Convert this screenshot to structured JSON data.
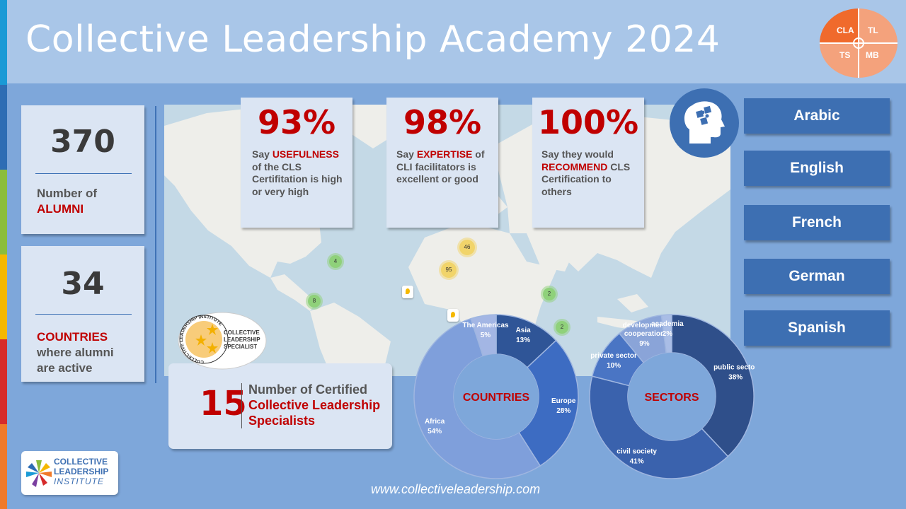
{
  "title": "Collective Leadership Academy 2024",
  "logo_quadrants": {
    "tl": "CLA",
    "tr": "TL",
    "bl": "TS",
    "br": "MB"
  },
  "colors": {
    "accent_red": "#c00000",
    "brand_blue": "#3d6fb2",
    "card_bg": "#dbe5f3",
    "background": "#7ea7da"
  },
  "stats": {
    "alumni": {
      "number": "370",
      "label_prefix": "Number of",
      "label_highlight": "ALUMNI"
    },
    "countries": {
      "number": "34",
      "label_highlight": "COUNTRIES",
      "label_suffix_1": "where alumni",
      "label_suffix_2": "are active"
    }
  },
  "percent_cards": [
    {
      "value": "93%",
      "line1_pre": "Say ",
      "line1_hl": "USEFULNESS",
      "rest": "of the CLS Certifitation is high or very high"
    },
    {
      "value": "98%",
      "line1_pre": "Say ",
      "line1_hl": "EXPERTISE",
      "line1_post": " of",
      "rest": "CLI facilitators is excellent or good"
    },
    {
      "value": "100%",
      "line1_pre": "Say they would",
      "line2_hl": "RECOMMEND",
      "line2_post": " CLS",
      "rest": "Certification to others"
    }
  ],
  "brain_icon": "brain-puzzle-icon",
  "languages": [
    "Arabic",
    "English",
    "French",
    "German",
    "Spanish"
  ],
  "map_markers": [
    {
      "label": "46",
      "type": "cluster-yellow"
    },
    {
      "label": "95",
      "type": "cluster-yellow"
    },
    {
      "label": "4",
      "type": "cluster-green"
    },
    {
      "label": "8",
      "type": "cluster-green"
    },
    {
      "label": "2",
      "type": "cluster-green"
    },
    {
      "label": "2",
      "type": "cluster-green"
    },
    {
      "label": "",
      "type": "pin"
    },
    {
      "label": "",
      "type": "pin"
    }
  ],
  "badge": {
    "ring_text": "COLLECTIVE LEADERSHIP INSTITUTE",
    "line1": "COLLECTIVE",
    "line2": "LEADERSHIP",
    "line3": "SPECIALIST"
  },
  "certified": {
    "number": "15",
    "line1": "Number of Certified",
    "line2": "Collective Leadership",
    "line3": "Specialists"
  },
  "chart_data": [
    {
      "type": "pie",
      "title": "COUNTRIES",
      "categories": [
        "Asia",
        "Europe",
        "Africa",
        "The Americas"
      ],
      "values": [
        13,
        28,
        54,
        5
      ],
      "labels": [
        "13%",
        "28%",
        "54%",
        "5%"
      ],
      "colors": [
        "#2f5597",
        "#3d6cc2",
        "#7f9fdb",
        "#a3b6e4"
      ]
    },
    {
      "type": "pie",
      "title": "SECTORS",
      "categories": [
        "public sector",
        "civil society",
        "private sector",
        "development cooperation",
        "academia"
      ],
      "values": [
        38,
        41,
        10,
        9,
        2
      ],
      "labels": [
        "38%",
        "41%",
        "10%",
        "9%",
        "2%"
      ],
      "colors": [
        "#2f4f8a",
        "#3a62ad",
        "#4a75c4",
        "#8aa4d8",
        "#a9bde6"
      ]
    }
  ],
  "footer": {
    "url": "www.collectiveleadership.com"
  },
  "org_logo": {
    "line1": "COLLECTIVE",
    "line2": "LEADERSHIP",
    "line3": "INSTITUTE"
  }
}
